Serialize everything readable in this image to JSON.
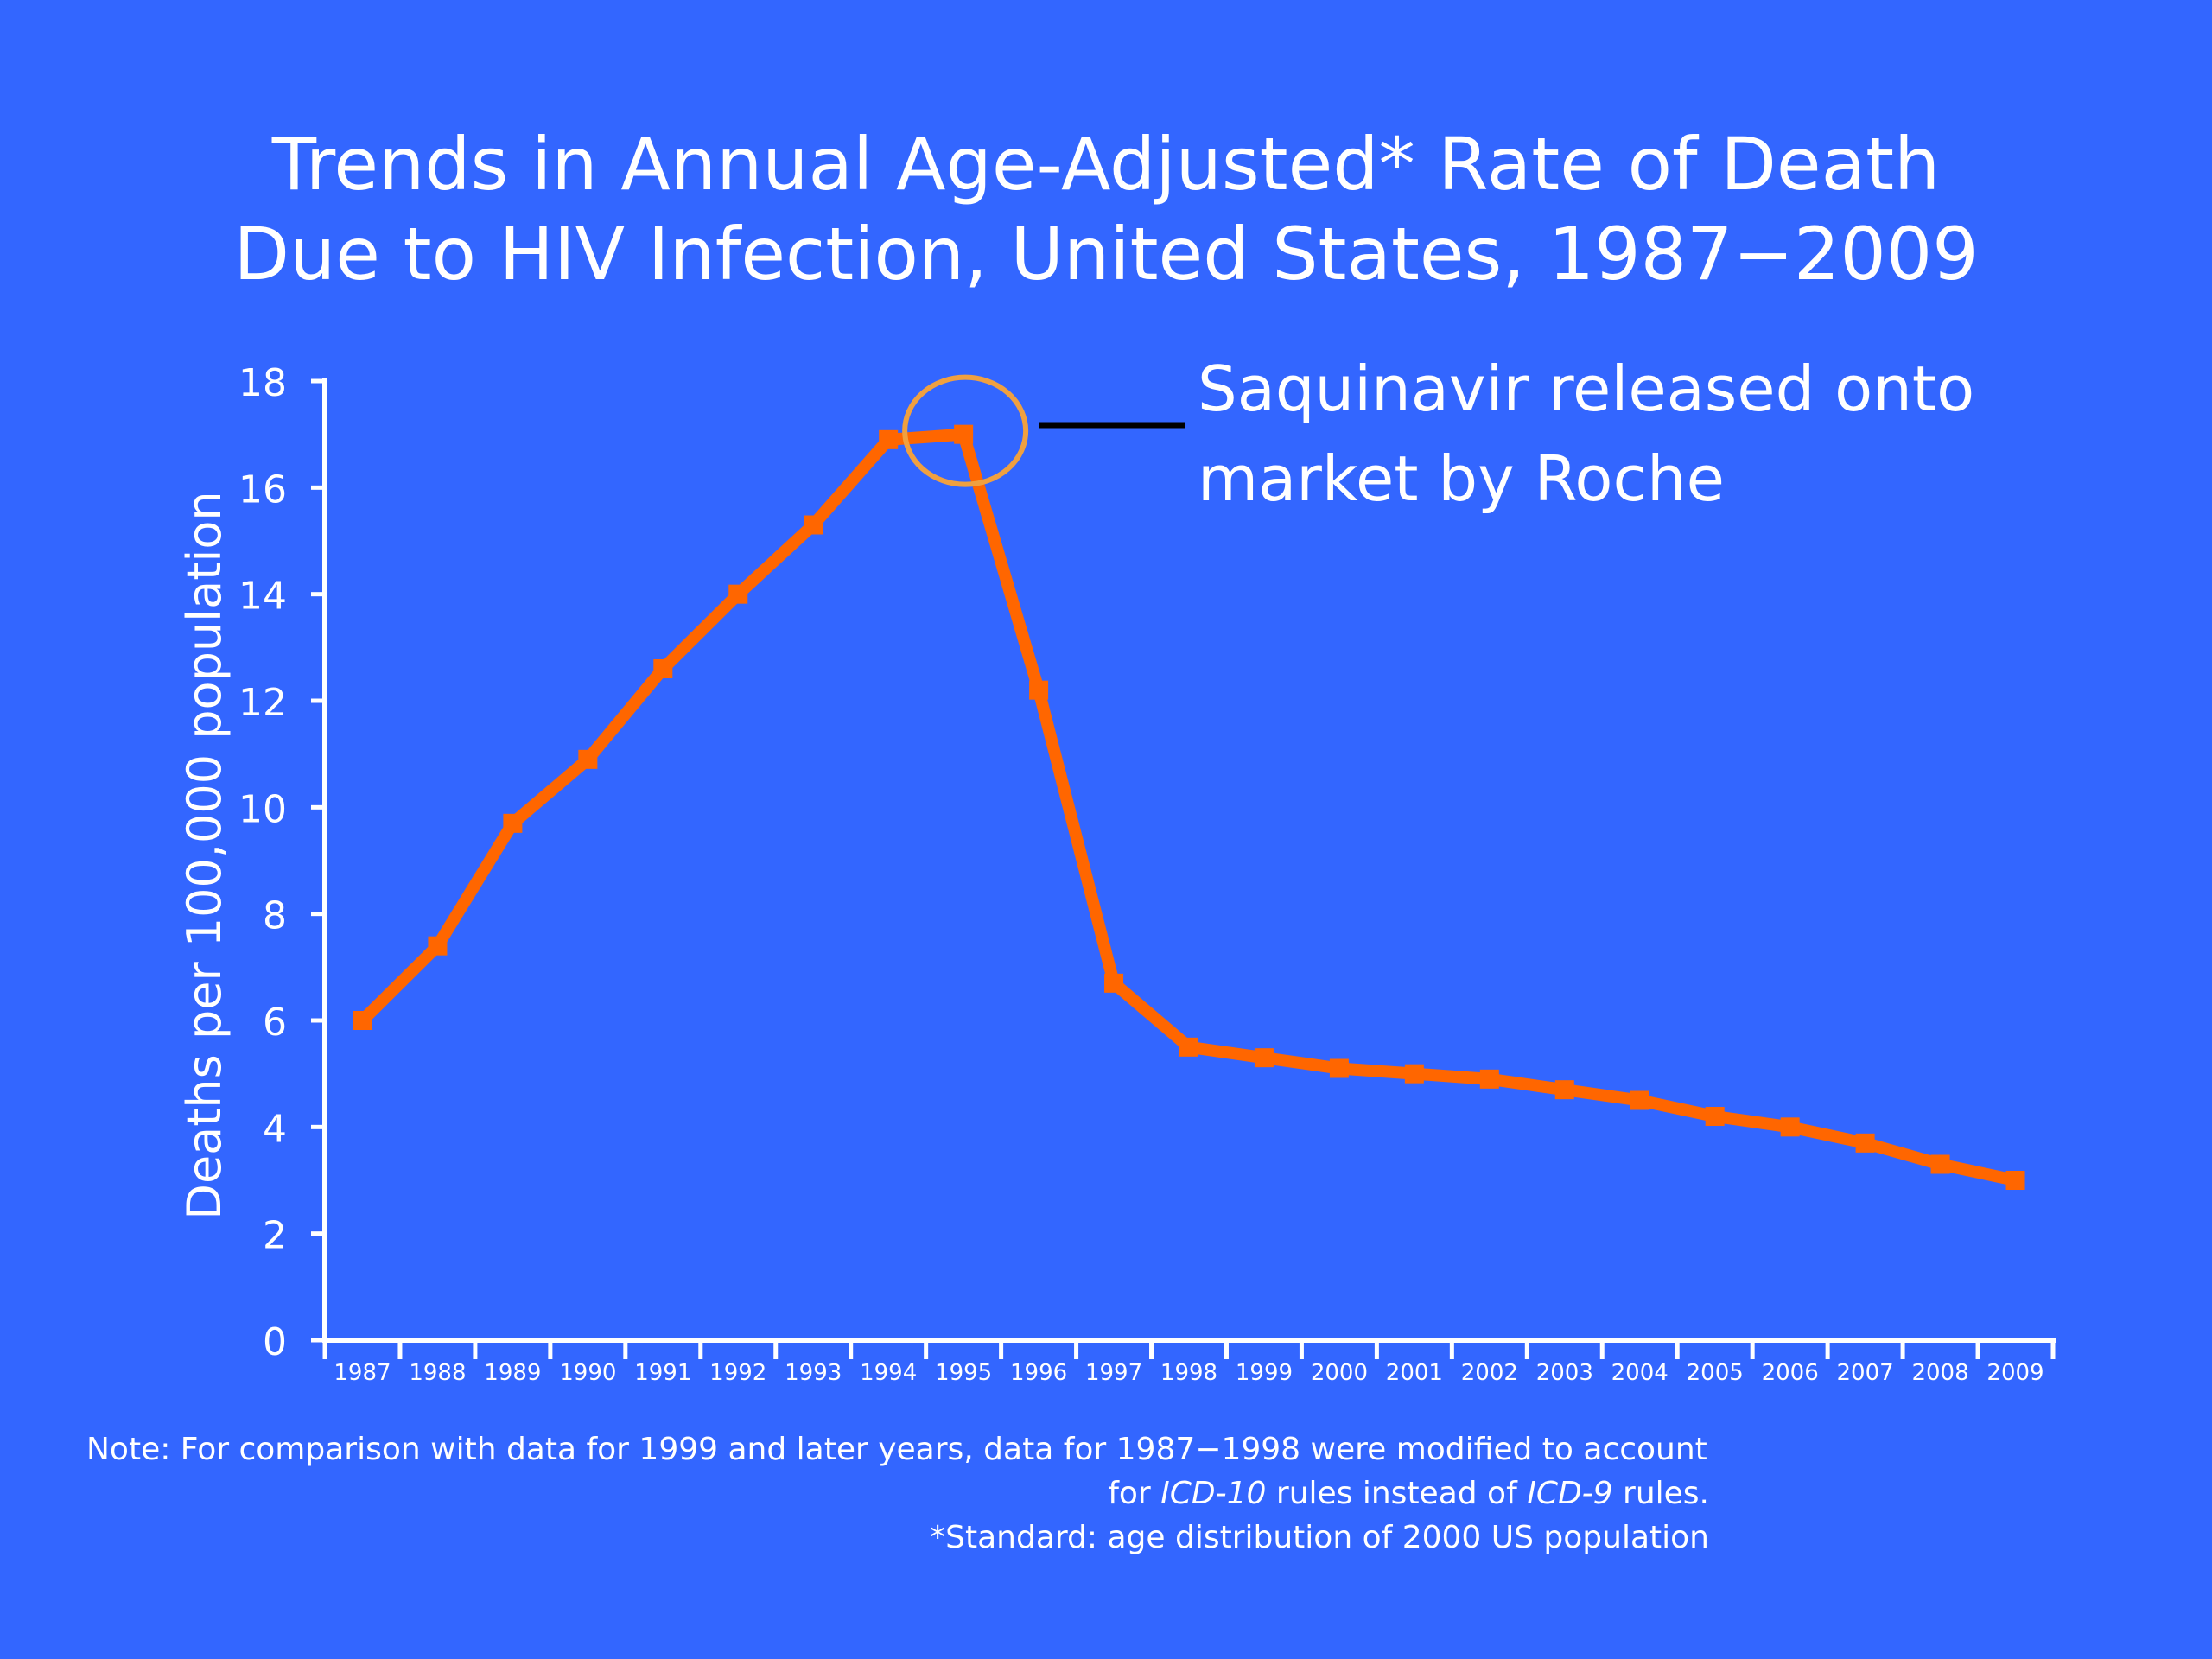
{
  "title": {
    "line1": "Trends in Annual Age-Adjusted* Rate of Death",
    "line2": "Due to HIV Infection, United States, 1987−2009"
  },
  "annotation": {
    "line1": "Saquinavir released onto",
    "line2": "market by Roche",
    "target_year": "1995"
  },
  "note": {
    "line1": "Note: For comparison with data for 1999 and later years, data for 1987−1998 were modified to account",
    "line2_prefix": "for ",
    "line2_icd10": "ICD-10",
    "line2_middle": " rules instead of ",
    "line2_icd9": "ICD-9",
    "line2_suffix": " rules.",
    "line3": "*Standard: age distribution of 2000 US population"
  },
  "colors": {
    "background": "#3366ff",
    "series": "#ff6600",
    "highlight_circle": "#f0a040",
    "axis": "#ffffff",
    "leader_line": "#000000"
  },
  "chart_data": {
    "type": "line",
    "title": "Trends in Annual Age-Adjusted* Rate of Death Due to HIV Infection, United States, 1987−2009",
    "xlabel": "",
    "ylabel": "Deaths per 100,000 population",
    "ylim": [
      0,
      18
    ],
    "yticks": [
      "0",
      "2",
      "4",
      "6",
      "8",
      "10",
      "12",
      "14",
      "16",
      "18"
    ],
    "grid": false,
    "categories": [
      "1987",
      "1988",
      "1989",
      "1990",
      "1991",
      "1992",
      "1993",
      "1994",
      "1995",
      "1996",
      "1997",
      "1998",
      "1999",
      "2000",
      "2001",
      "2002",
      "2003",
      "2004",
      "2005",
      "2006",
      "2007",
      "2008",
      "2009"
    ],
    "series": [
      {
        "values": [
          6.0,
          7.4,
          9.7,
          10.9,
          12.6,
          14.0,
          15.3,
          16.9,
          17.0,
          12.2,
          6.7,
          5.5,
          5.3,
          5.1,
          5.0,
          4.9,
          4.7,
          4.5,
          4.2,
          4.0,
          3.7,
          3.3,
          3.0
        ],
        "marker": "square"
      }
    ]
  }
}
